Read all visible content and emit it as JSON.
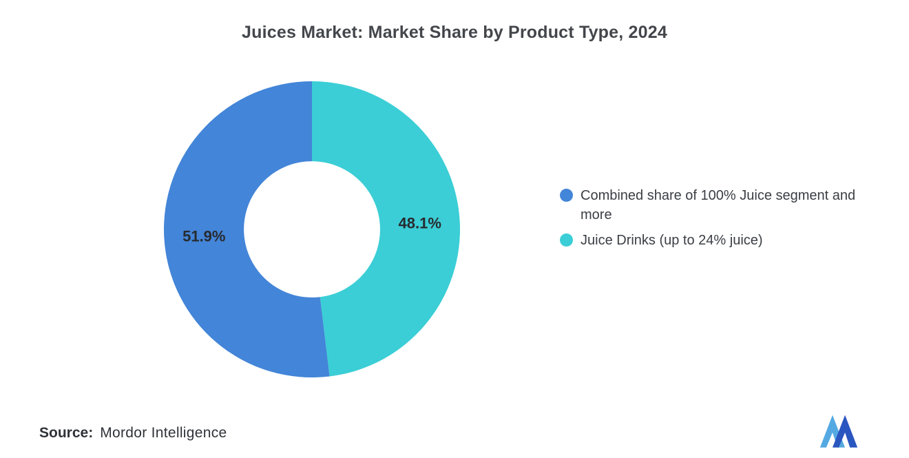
{
  "title": "Juices Market: Market Share by Product Type, 2024",
  "source": {
    "label": "Source:",
    "value": "Mordor Intelligence"
  },
  "logo": {
    "name": "mordor-intelligence-logo"
  },
  "chart_data": {
    "type": "pie",
    "subtype": "donut",
    "title": "Juices Market: Market Share by Product Type, 2024",
    "slices": [
      {
        "label": "Combined share of 100% Juice segment and more",
        "value": 51.9,
        "color": "#4385d8"
      },
      {
        "label": "Juice Drinks (up to 24% juice)",
        "value": 48.1,
        "color": "#3bced6"
      }
    ],
    "value_label_format": "{value}%",
    "start_position": "12 o'clock, second slice drawn clockwise on the right",
    "inner_radius_ratio": 0.46,
    "legend_position": "right",
    "grid": false
  }
}
